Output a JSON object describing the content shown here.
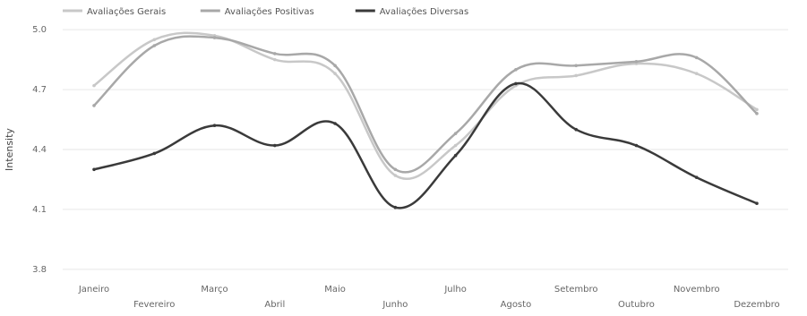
{
  "chart_data": {
    "type": "line",
    "title": "",
    "xlabel": "",
    "ylabel": "Intensity",
    "categories": [
      "Janeiro",
      "Fevereiro",
      "Março",
      "Abril",
      "Maio",
      "Junho",
      "Julho",
      "Agosto",
      "Setembro",
      "Outubro",
      "Novembro",
      "Dezembro"
    ],
    "yticks": [
      "3.8",
      "4.1",
      "4.4",
      "4.7",
      "5.0"
    ],
    "ylim": [
      3.75,
      5.05
    ],
    "grid": "horizontal",
    "legend_position": "top-left",
    "series": [
      {
        "name": "Avaliações Gerais",
        "color": "#c8c8c8",
        "values": [
          4.72,
          4.95,
          4.97,
          4.85,
          4.78,
          4.27,
          4.42,
          4.72,
          4.77,
          4.83,
          4.78,
          4.6
        ]
      },
      {
        "name": "Avaliações Positivas",
        "color": "#a8a8a8",
        "values": [
          4.62,
          4.92,
          4.96,
          4.88,
          4.82,
          4.3,
          4.48,
          4.8,
          4.82,
          4.84,
          4.86,
          4.58
        ]
      },
      {
        "name": "Avaliações Diversas",
        "color": "#3a3a3a",
        "values": [
          4.3,
          4.38,
          4.52,
          4.42,
          4.53,
          4.11,
          4.37,
          4.73,
          4.5,
          4.42,
          4.26,
          4.13
        ]
      }
    ]
  }
}
